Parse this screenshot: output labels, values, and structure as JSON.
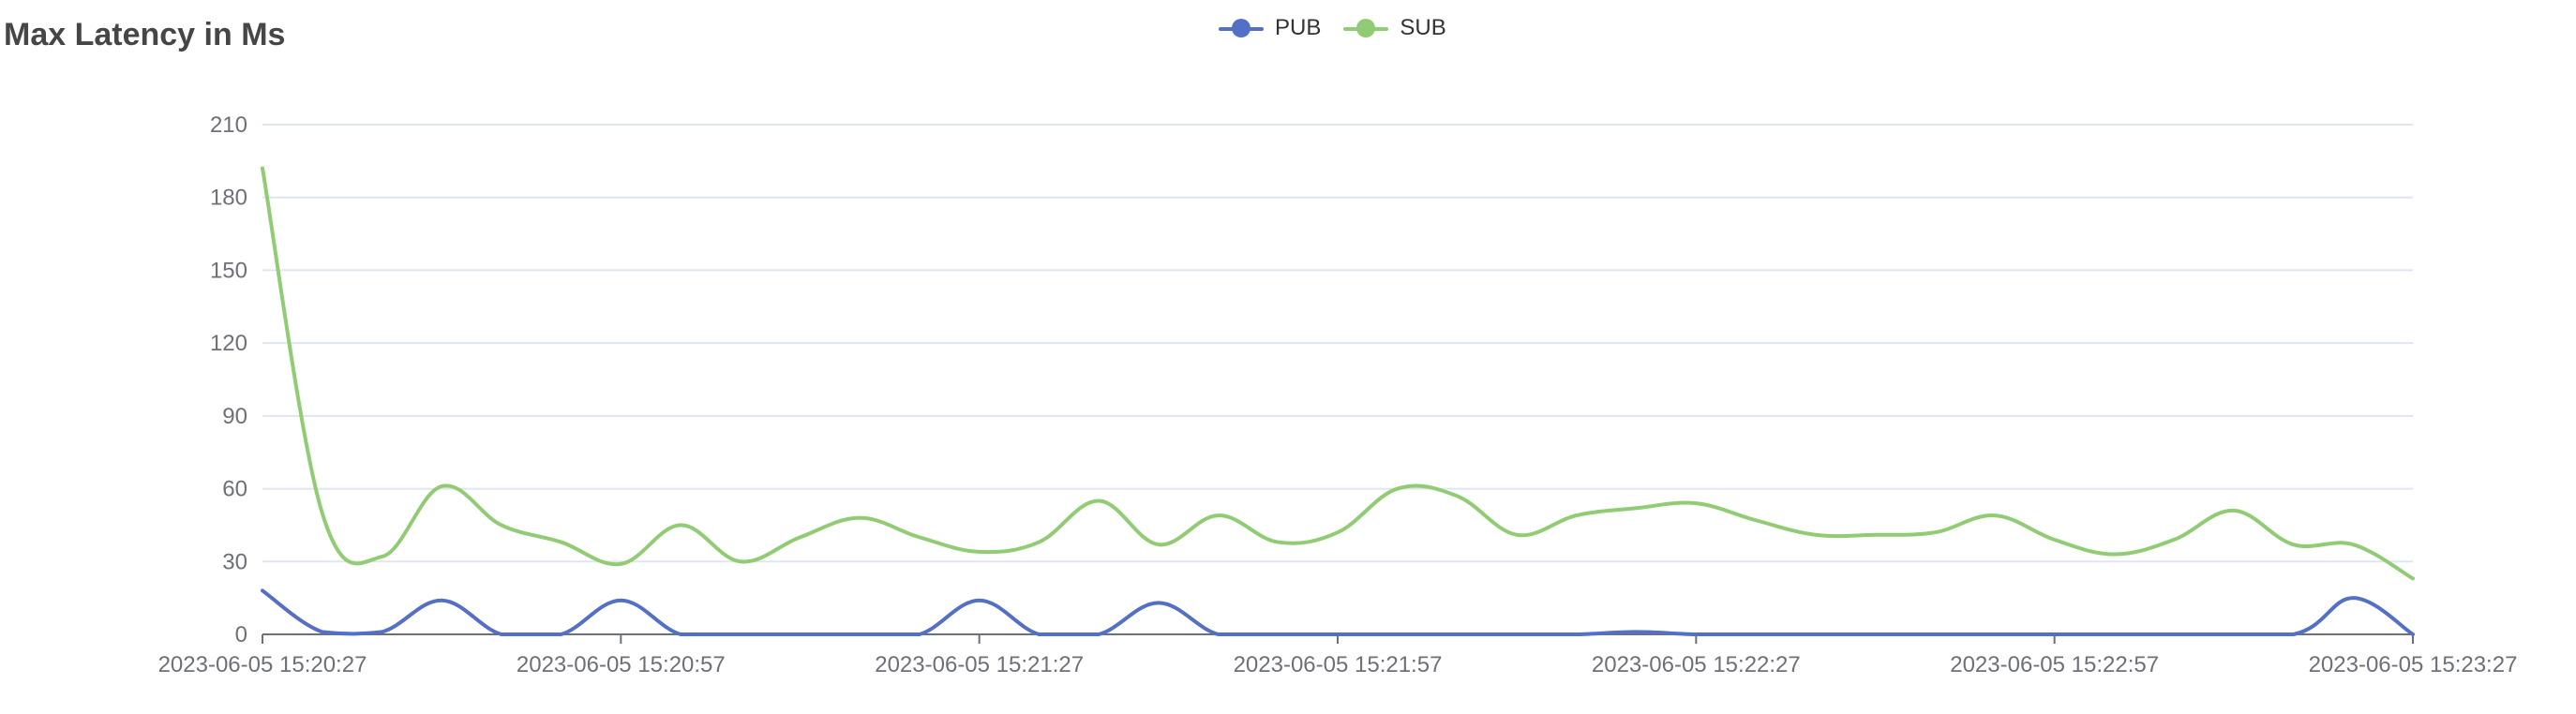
{
  "chart_data": {
    "type": "line",
    "title": "Max Latency in Ms",
    "legend_position": "top-center",
    "grid": true,
    "x_tick_labels": [
      "2023-06-05 15:20:27",
      "2023-06-05 15:20:57",
      "2023-06-05 15:21:27",
      "2023-06-05 15:21:57",
      "2023-06-05 15:22:27",
      "2023-06-05 15:22:57",
      "2023-06-05 15:23:27"
    ],
    "x_range_seconds": [
      0,
      180
    ],
    "y_ticks": [
      0,
      30,
      60,
      90,
      120,
      150,
      180,
      210
    ],
    "ylim": [
      0,
      210
    ],
    "series": [
      {
        "name": "PUB",
        "color": "#5470c6",
        "points": [
          [
            0,
            18
          ],
          [
            5,
            1
          ],
          [
            10,
            1
          ],
          [
            15,
            14
          ],
          [
            20,
            0
          ],
          [
            25,
            0
          ],
          [
            30,
            14
          ],
          [
            35,
            0
          ],
          [
            40,
            0
          ],
          [
            45,
            0
          ],
          [
            50,
            0
          ],
          [
            55,
            0
          ],
          [
            60,
            14
          ],
          [
            65,
            0
          ],
          [
            70,
            0
          ],
          [
            75,
            13
          ],
          [
            80,
            0
          ],
          [
            85,
            0
          ],
          [
            90,
            0
          ],
          [
            95,
            0
          ],
          [
            100,
            0
          ],
          [
            105,
            0
          ],
          [
            110,
            0
          ],
          [
            115,
            1
          ],
          [
            120,
            0
          ],
          [
            125,
            0
          ],
          [
            130,
            0
          ],
          [
            135,
            0
          ],
          [
            140,
            0
          ],
          [
            145,
            0
          ],
          [
            150,
            0
          ],
          [
            155,
            0
          ],
          [
            160,
            0
          ],
          [
            170,
            0
          ],
          [
            175,
            15
          ],
          [
            180,
            0
          ]
        ]
      },
      {
        "name": "SUB",
        "color": "#91cc75",
        "points": [
          [
            0,
            192
          ],
          [
            5,
            50
          ],
          [
            10,
            32
          ],
          [
            15,
            61
          ],
          [
            20,
            45
          ],
          [
            25,
            38
          ],
          [
            30,
            29
          ],
          [
            35,
            45
          ],
          [
            40,
            30
          ],
          [
            45,
            40
          ],
          [
            50,
            48
          ],
          [
            55,
            40
          ],
          [
            60,
            34
          ],
          [
            65,
            38
          ],
          [
            70,
            55
          ],
          [
            75,
            37
          ],
          [
            80,
            49
          ],
          [
            85,
            38
          ],
          [
            90,
            42
          ],
          [
            95,
            60
          ],
          [
            100,
            57
          ],
          [
            105,
            41
          ],
          [
            110,
            49
          ],
          [
            115,
            52
          ],
          [
            120,
            54
          ],
          [
            125,
            47
          ],
          [
            130,
            41
          ],
          [
            135,
            41
          ],
          [
            140,
            42
          ],
          [
            145,
            49
          ],
          [
            150,
            39
          ],
          [
            155,
            33
          ],
          [
            160,
            39
          ],
          [
            165,
            51
          ],
          [
            170,
            37
          ],
          [
            175,
            37
          ],
          [
            180,
            23
          ]
        ]
      }
    ]
  }
}
